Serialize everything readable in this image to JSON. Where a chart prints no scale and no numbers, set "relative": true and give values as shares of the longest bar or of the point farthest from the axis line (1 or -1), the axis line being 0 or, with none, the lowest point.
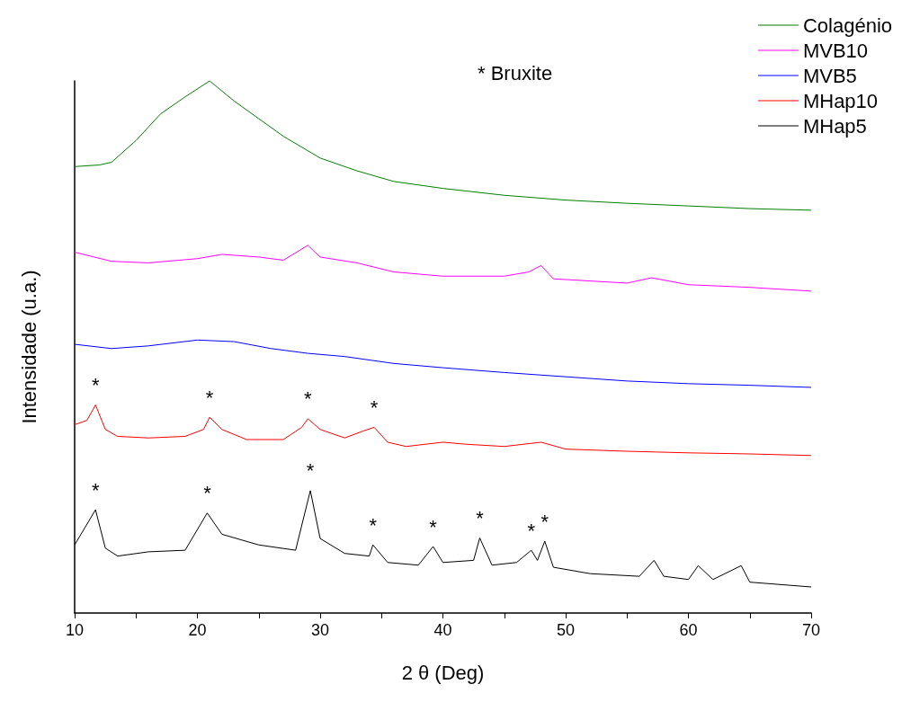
{
  "chart_data": {
    "type": "line",
    "relative": true,
    "xlabel": "2 θ (Deg)",
    "ylabel": "Intensidade (u.a.)",
    "legend": "top right",
    "grid": false,
    "marker": "none",
    "line_style": "solid",
    "xlim": [
      10,
      70
    ],
    "xticks": [
      10,
      {
        "value": 15,
        "label": null
      },
      20,
      {
        "value": 25,
        "label": null
      },
      30,
      {
        "value": 35,
        "label": null
      },
      40,
      {
        "value": 45,
        "label": null
      },
      50,
      {
        "value": 55,
        "label": null
      },
      60,
      {
        "value": 65,
        "label": null
      },
      70
    ],
    "series": [
      {
        "name": "Colagénio",
        "color": "#007f00",
        "x": [
          10,
          12,
          13,
          15,
          17,
          19,
          21,
          23,
          25,
          27,
          30,
          33,
          36,
          40,
          45,
          50,
          55,
          60,
          65,
          70
        ],
        "values": [
          0.839,
          0.842,
          0.847,
          0.888,
          0.938,
          0.97,
          1.0,
          0.962,
          0.929,
          0.896,
          0.855,
          0.831,
          0.811,
          0.798,
          0.785,
          0.776,
          0.77,
          0.765,
          0.76,
          0.757
        ]
      },
      {
        "name": "MVB10",
        "color": "#ff00ff",
        "x": [
          10,
          13,
          16,
          20,
          22,
          25,
          27,
          29,
          30,
          33,
          36,
          40,
          45,
          47,
          48,
          49,
          55,
          57,
          60,
          65,
          70
        ],
        "values": [
          0.678,
          0.661,
          0.658,
          0.666,
          0.674,
          0.669,
          0.663,
          0.691,
          0.669,
          0.658,
          0.641,
          0.633,
          0.633,
          0.641,
          0.653,
          0.628,
          0.62,
          0.63,
          0.617,
          0.612,
          0.605
        ]
      },
      {
        "name": "MVB5",
        "color": "#0000ff",
        "x": [
          10,
          13,
          16,
          20,
          23,
          26,
          29,
          32,
          36,
          40,
          45,
          50,
          55,
          60,
          65,
          70
        ],
        "values": [
          0.505,
          0.497,
          0.502,
          0.513,
          0.51,
          0.497,
          0.488,
          0.482,
          0.469,
          0.461,
          0.452,
          0.444,
          0.436,
          0.431,
          0.428,
          0.424
        ]
      },
      {
        "name": "MHap10",
        "color": "#ff0000",
        "x": [
          10,
          11,
          11.7,
          12.5,
          13.5,
          16,
          19,
          20.5,
          21,
          22,
          24,
          27,
          28.5,
          29,
          30,
          32,
          33.5,
          34.4,
          35.5,
          37,
          40,
          42,
          45,
          48,
          50,
          55,
          60,
          65,
          70
        ],
        "values": [
          0.354,
          0.362,
          0.391,
          0.345,
          0.332,
          0.329,
          0.332,
          0.345,
          0.368,
          0.345,
          0.326,
          0.326,
          0.349,
          0.365,
          0.345,
          0.329,
          0.342,
          0.349,
          0.321,
          0.313,
          0.321,
          0.317,
          0.313,
          0.321,
          0.308,
          0.304,
          0.301,
          0.299,
          0.296
        ]
      },
      {
        "name": "MHap5",
        "color": "#000000",
        "x": [
          10,
          11.7,
          12.5,
          13.5,
          16,
          19,
          20.8,
          22,
          25,
          28,
          29.2,
          30,
          32,
          34,
          34.3,
          35.5,
          38,
          39.2,
          40,
          42.5,
          43,
          44,
          46,
          47.2,
          47.7,
          48.3,
          49,
          52,
          56,
          57.2,
          58,
          60,
          60.8,
          62,
          64.3,
          65,
          70
        ],
        "values": [
          0.128,
          0.194,
          0.122,
          0.107,
          0.115,
          0.118,
          0.188,
          0.148,
          0.128,
          0.118,
          0.23,
          0.14,
          0.112,
          0.107,
          0.128,
          0.095,
          0.09,
          0.125,
          0.095,
          0.099,
          0.141,
          0.09,
          0.095,
          0.118,
          0.099,
          0.135,
          0.086,
          0.074,
          0.069,
          0.099,
          0.069,
          0.063,
          0.089,
          0.063,
          0.089,
          0.058,
          0.049
        ]
      }
    ],
    "annotations": [
      "* Bruxite",
      {
        "text": "*",
        "x": 11.7,
        "y": 0.391
      },
      {
        "text": "*",
        "x": 21,
        "y": 0.368
      },
      {
        "text": "*",
        "x": 29,
        "y": 0.365
      },
      {
        "text": "*",
        "x": 34.4,
        "y": 0.349
      },
      {
        "text": "*",
        "x": 11.7,
        "y": 0.194
      },
      {
        "text": "*",
        "x": 20.8,
        "y": 0.188
      },
      {
        "text": "*",
        "x": 29.2,
        "y": 0.23
      },
      {
        "text": "*",
        "x": 34.3,
        "y": 0.128
      },
      {
        "text": "*",
        "x": 39.2,
        "y": 0.125
      },
      {
        "text": "*",
        "x": 43,
        "y": 0.141
      },
      {
        "text": "*",
        "x": 47.2,
        "y": 0.118
      },
      {
        "text": "*",
        "x": 48.3,
        "y": 0.135
      }
    ]
  }
}
